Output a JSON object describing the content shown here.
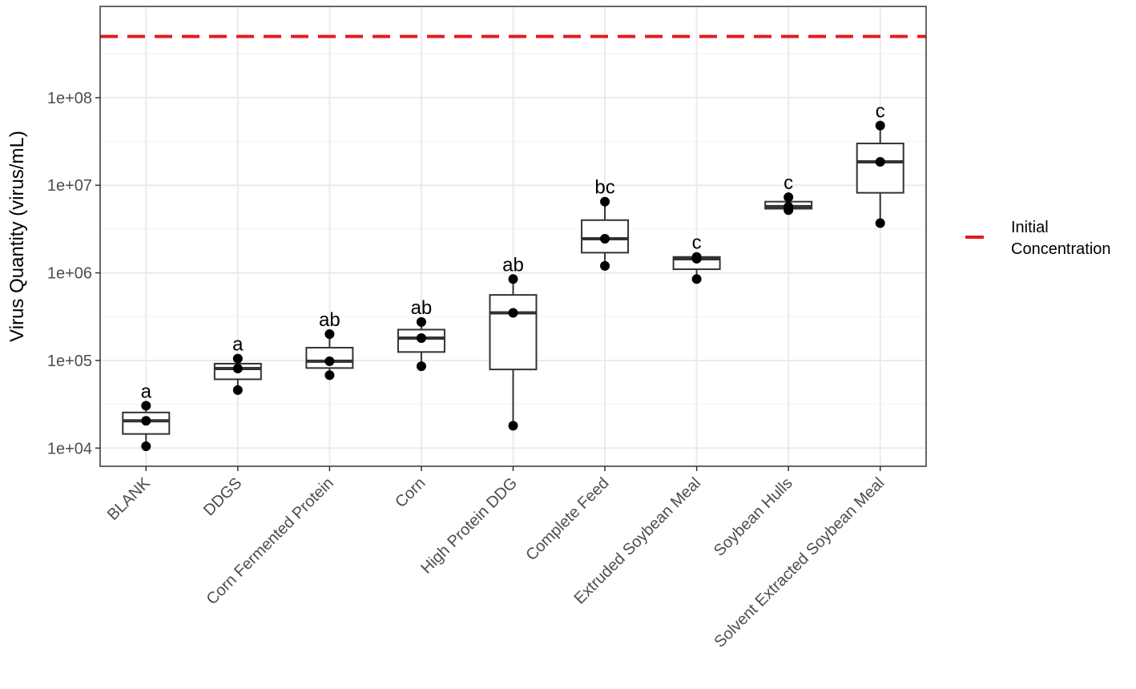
{
  "chart_data": {
    "type": "box",
    "title": "",
    "xlabel": "",
    "ylabel": "Virus Quantity (virus/mL)",
    "yscale": "log10",
    "ylim": [
      6200,
      1100000000
    ],
    "yticks": [
      {
        "value": 10000,
        "label": "1e+04"
      },
      {
        "value": 100000,
        "label": "1e+05"
      },
      {
        "value": 1000000,
        "label": "1e+06"
      },
      {
        "value": 10000000,
        "label": "1e+07"
      },
      {
        "value": 100000000,
        "label": "1e+08"
      }
    ],
    "grid": true,
    "reference_line": {
      "value": 500000000,
      "label": "Initial Concentration",
      "color": "#e41a1c",
      "style": "dashed"
    },
    "legend": {
      "position": "right",
      "entries": [
        {
          "label_lines": [
            "Initial",
            "Concentration"
          ],
          "color": "#e41a1c"
        }
      ]
    },
    "categories": [
      "BLANK",
      "DDGS",
      "Corn Fermented Protein",
      "Corn",
      "High Protein DDG",
      "Complete Feed",
      "Extruded Soybean Meal",
      "Soybean Hulls",
      "Solvent Extracted Soybean Meal"
    ],
    "boxes": [
      {
        "category": "BLANK",
        "min": 10500,
        "q1": 14500,
        "median": 20500,
        "q3": 25500,
        "max": 30500,
        "points": [
          10500,
          20500,
          30500
        ],
        "letter": "a"
      },
      {
        "category": "DDGS",
        "min": 46000,
        "q1": 61000,
        "median": 81000,
        "q3": 92000,
        "max": 105000,
        "points": [
          46000,
          81000,
          105000
        ],
        "letter": "a"
      },
      {
        "category": "Corn Fermented Protein",
        "min": 68000,
        "q1": 82000,
        "median": 98000,
        "q3": 140000,
        "max": 200000,
        "points": [
          68000,
          98000,
          200000
        ],
        "letter": "ab"
      },
      {
        "category": "Corn",
        "min": 86000,
        "q1": 125000,
        "median": 180000,
        "q3": 225000,
        "max": 275000,
        "points": [
          86000,
          180000,
          275000
        ],
        "letter": "ab"
      },
      {
        "category": "High Protein DDG",
        "min": 18000,
        "q1": 79000,
        "median": 350000,
        "q3": 560000,
        "max": 850000,
        "points": [
          18000,
          350000,
          850000
        ],
        "letter": "ab"
      },
      {
        "category": "Complete Feed",
        "min": 1200000,
        "q1": 1700000,
        "median": 2450000,
        "q3": 4000000,
        "max": 6500000,
        "points": [
          1200000,
          2450000,
          6500000
        ],
        "letter": "bc"
      },
      {
        "category": "Extruded Soybean Meal",
        "min": 850000,
        "q1": 1100000,
        "median": 1450000,
        "q3": 1520000,
        "max": 1520000,
        "points": [
          850000,
          1450000,
          1520000
        ],
        "letter": "c"
      },
      {
        "category": "Soybean Hulls",
        "min": 5200000,
        "q1": 5400000,
        "median": 5700000,
        "q3": 6500000,
        "max": 7300000,
        "points": [
          5200000,
          5700000,
          7300000
        ],
        "letter": "c"
      },
      {
        "category": "Solvent Extracted Soybean Meal",
        "min": 3700000,
        "q1": 8200000,
        "median": 18500000,
        "q3": 30000000,
        "max": 48000000,
        "points": [
          3700000,
          18500000,
          48000000
        ],
        "letter": "c"
      }
    ]
  }
}
